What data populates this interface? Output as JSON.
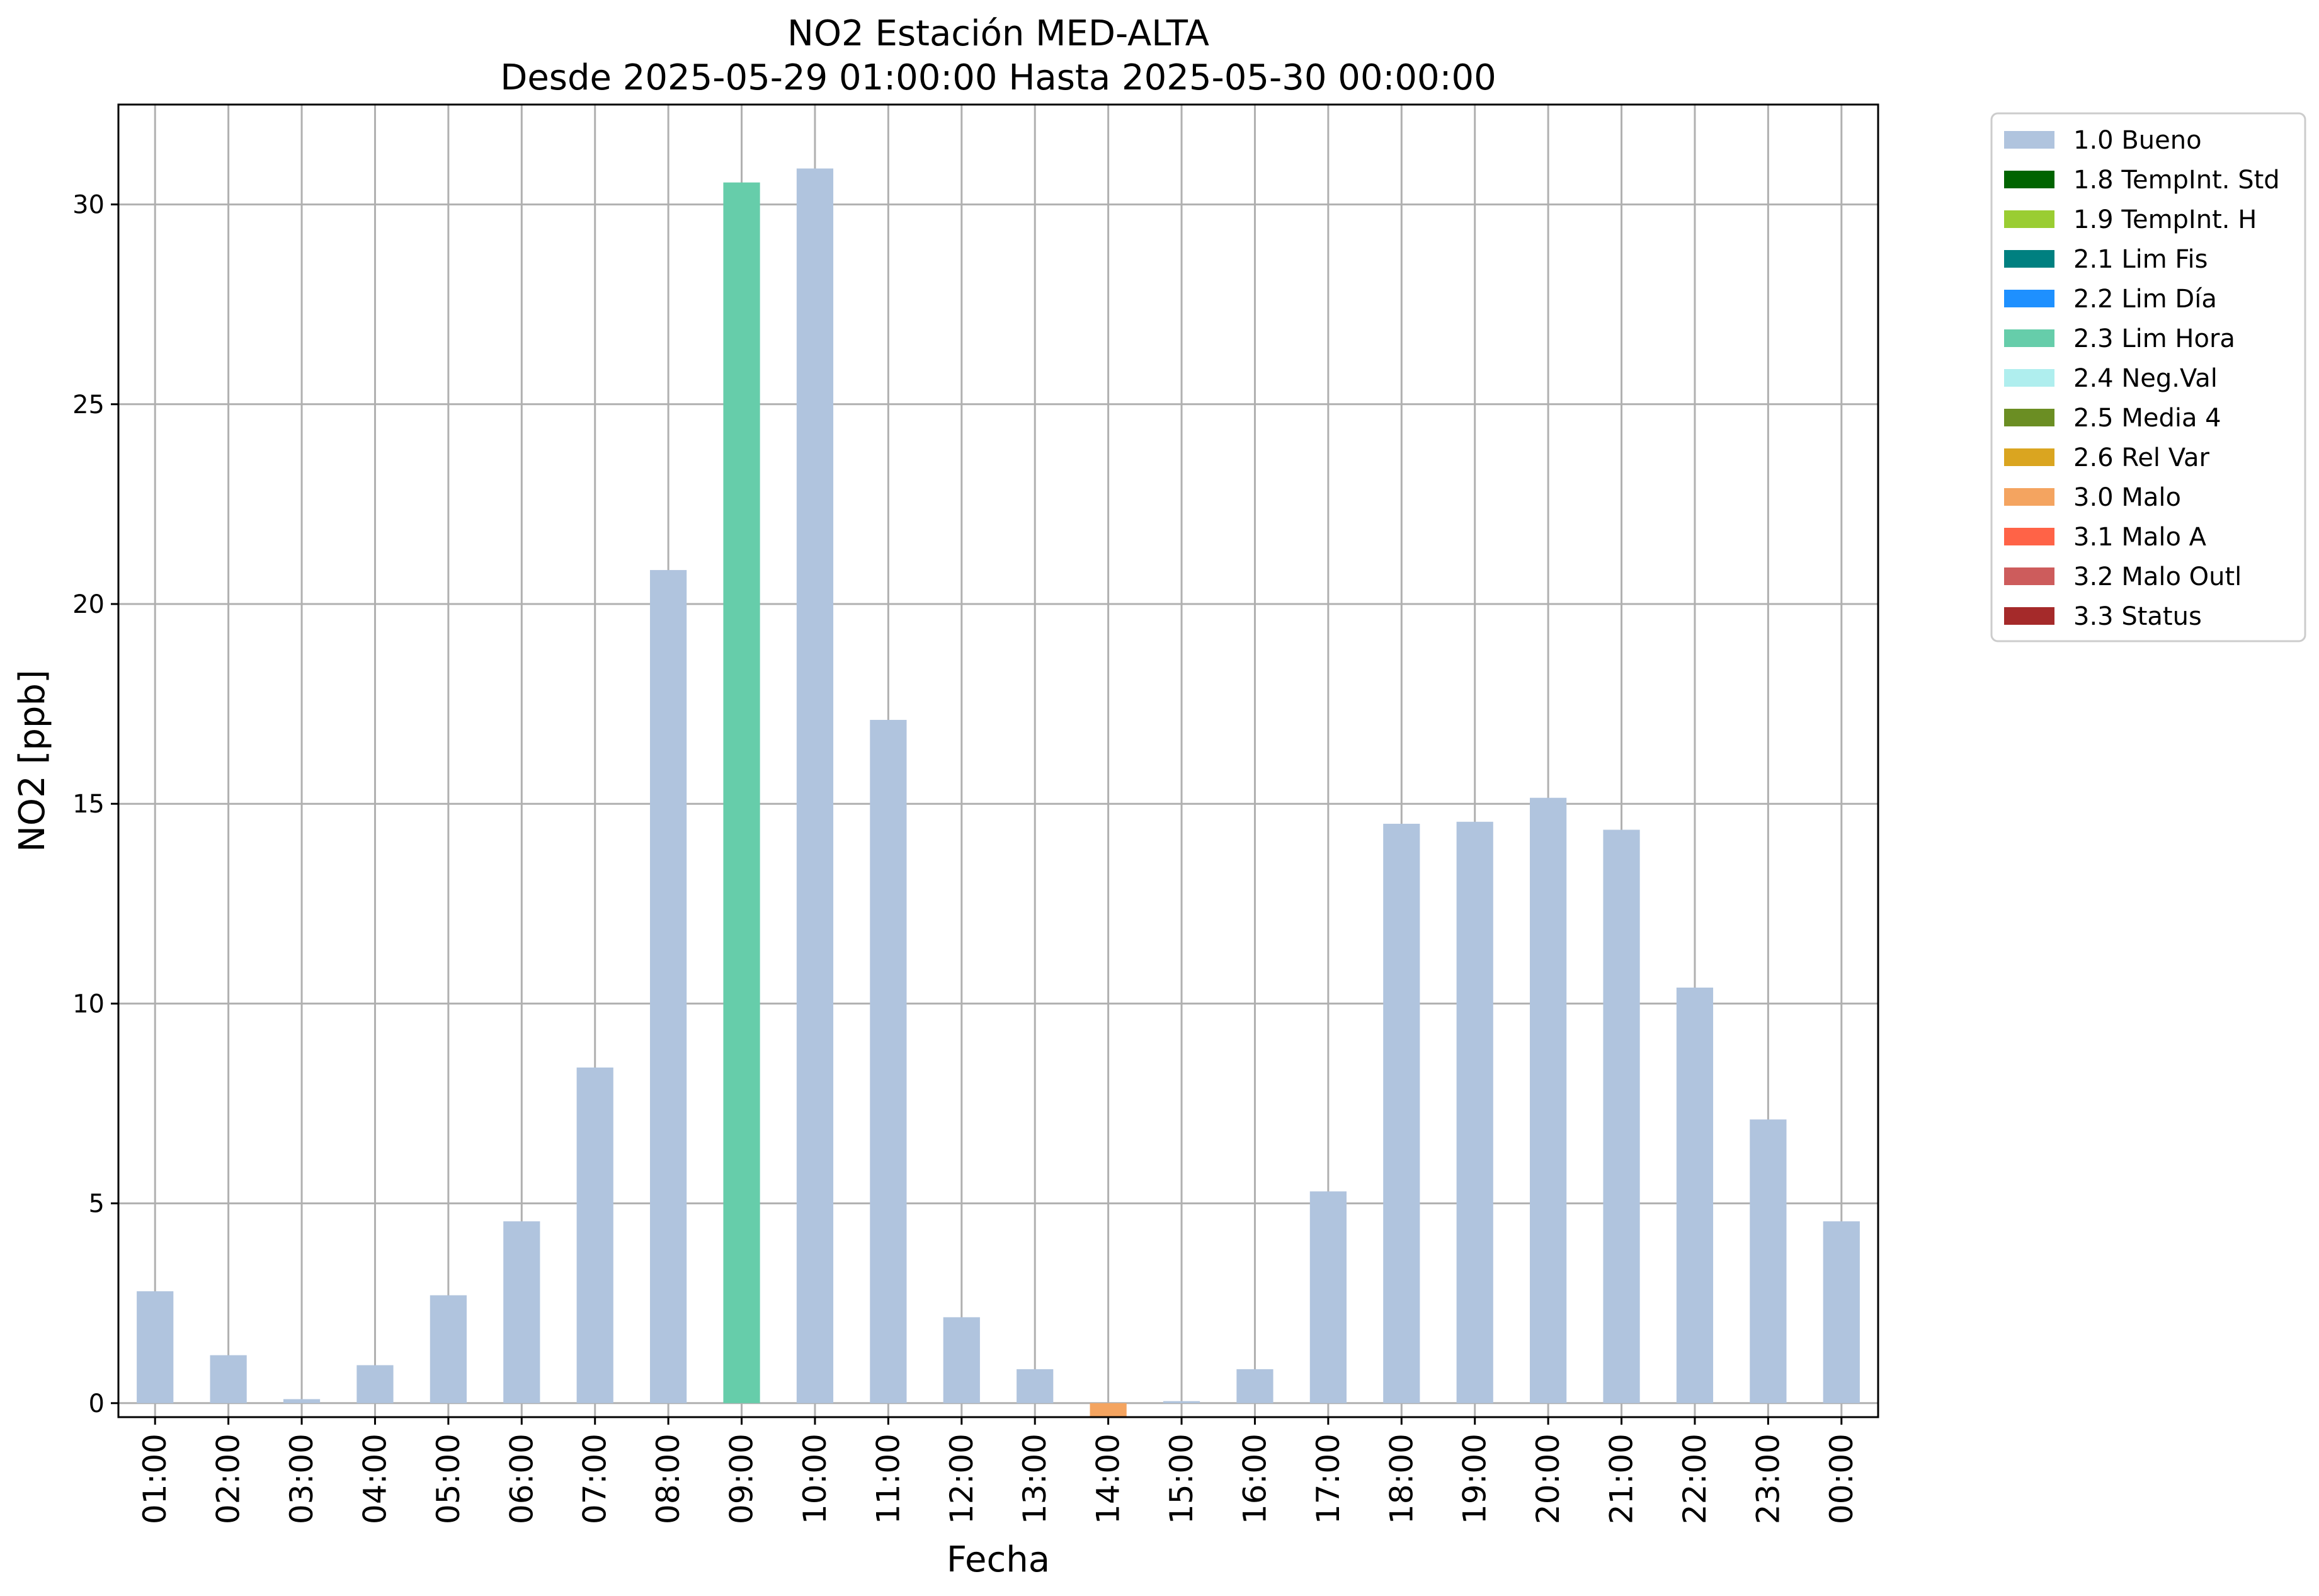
{
  "chart_data": {
    "type": "bar",
    "title": "NO2 Estación MED-ALTA",
    "subtitle": "Desde 2025-05-29 01:00:00 Hasta 2025-05-30 00:00:00",
    "xlabel": "Fecha",
    "ylabel": "NO2 [ppb]",
    "ylim": [
      -0.35,
      32.5
    ],
    "yticks": [
      0,
      5,
      10,
      15,
      20,
      25,
      30
    ],
    "grid": true,
    "legend_position": "outside-top-right",
    "categories": [
      "01:00",
      "02:00",
      "03:00",
      "04:00",
      "05:00",
      "06:00",
      "07:00",
      "08:00",
      "09:00",
      "10:00",
      "11:00",
      "12:00",
      "13:00",
      "14:00",
      "15:00",
      "16:00",
      "17:00",
      "18:00",
      "19:00",
      "20:00",
      "21:00",
      "22:00",
      "23:00",
      "00:00"
    ],
    "values": [
      2.8,
      1.2,
      0.1,
      0.95,
      2.7,
      4.55,
      8.4,
      20.85,
      30.55,
      30.9,
      17.1,
      2.15,
      0.85,
      -0.35,
      0.05,
      0.85,
      5.3,
      14.5,
      14.55,
      15.15,
      14.35,
      10.4,
      7.1,
      4.55
    ],
    "flags": [
      "1.0 Bueno",
      "1.0 Bueno",
      "1.0 Bueno",
      "1.0 Bueno",
      "1.0 Bueno",
      "1.0 Bueno",
      "1.0 Bueno",
      "1.0 Bueno",
      "2.3 Lim Hora",
      "1.0 Bueno",
      "1.0 Bueno",
      "1.0 Bueno",
      "1.0 Bueno",
      "3.0 Malo",
      "1.0 Bueno",
      "1.0 Bueno",
      "1.0 Bueno",
      "1.0 Bueno",
      "1.0 Bueno",
      "1.0 Bueno",
      "1.0 Bueno",
      "1.0 Bueno",
      "1.0 Bueno",
      "1.0 Bueno"
    ],
    "legend": [
      {
        "label": "1.0 Bueno",
        "color": "#b0c4de"
      },
      {
        "label": "1.8 TempInt. Std",
        "color": "#006400"
      },
      {
        "label": "1.9 TempInt. H",
        "color": "#9acd32"
      },
      {
        "label": "2.1 Lim Fis",
        "color": "#008080"
      },
      {
        "label": "2.2 Lim Día",
        "color": "#1e90ff"
      },
      {
        "label": "2.3 Lim Hora",
        "color": "#66cdaa"
      },
      {
        "label": "2.4 Neg.Val",
        "color": "#afeeee"
      },
      {
        "label": "2.5 Media 4",
        "color": "#6b8e23"
      },
      {
        "label": "2.6 Rel Var",
        "color": "#daa520"
      },
      {
        "label": "3.0 Malo",
        "color": "#f4a460"
      },
      {
        "label": "3.1 Malo A",
        "color": "#ff6347"
      },
      {
        "label": "3.2 Malo Outl",
        "color": "#cd5c5c"
      },
      {
        "label": "3.3 Status",
        "color": "#a52a2a"
      }
    ]
  }
}
